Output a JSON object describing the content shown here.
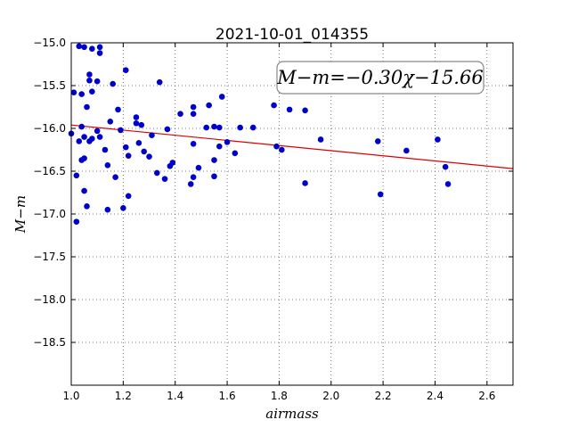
{
  "chart_data": {
    "type": "scatter",
    "title": "2021-10-01_014355",
    "xlabel": "airmass",
    "ylabel": "M−m",
    "xlim": [
      1.0,
      2.7
    ],
    "ylim": [
      -15.0,
      -19.0
    ],
    "y_inverted": true,
    "grid": true,
    "x_ticks": [
      "1.0",
      "1.2",
      "1.4",
      "1.6",
      "1.8",
      "2.0",
      "2.2",
      "2.4",
      "2.6"
    ],
    "y_ticks": [
      "−15.0",
      "−15.5",
      "−16.0",
      "−16.5",
      "−17.0",
      "−17.5",
      "−18.0",
      "−18.5"
    ],
    "annotation": "M−m=−0.30χ−15.66",
    "point_color": "#0000cc",
    "fit_color": "#dd0000",
    "fit_line": {
      "slope": -0.3,
      "intercept": -15.66
    },
    "points": [
      [
        1.0,
        -16.06
      ],
      [
        1.01,
        -15.58
      ],
      [
        1.02,
        -16.55
      ],
      [
        1.02,
        -17.09
      ],
      [
        1.03,
        -15.04
      ],
      [
        1.04,
        -15.6
      ],
      [
        1.05,
        -15.05
      ],
      [
        1.06,
        -15.75
      ],
      [
        1.04,
        -15.98
      ],
      [
        1.05,
        -16.1
      ],
      [
        1.03,
        -16.15
      ],
      [
        1.04,
        -16.37
      ],
      [
        1.05,
        -16.35
      ],
      [
        1.05,
        -16.73
      ],
      [
        1.06,
        -16.91
      ],
      [
        1.07,
        -15.37
      ],
      [
        1.07,
        -15.44
      ],
      [
        1.08,
        -15.07
      ],
      [
        1.08,
        -15.57
      ],
      [
        1.07,
        -16.15
      ],
      [
        1.08,
        -16.12
      ],
      [
        1.1,
        -15.45
      ],
      [
        1.1,
        -16.03
      ],
      [
        1.11,
        -15.05
      ],
      [
        1.11,
        -15.12
      ],
      [
        1.11,
        -16.1
      ],
      [
        1.13,
        -16.25
      ],
      [
        1.14,
        -16.43
      ],
      [
        1.14,
        -16.95
      ],
      [
        1.15,
        -15.92
      ],
      [
        1.16,
        -15.48
      ],
      [
        1.17,
        -16.57
      ],
      [
        1.18,
        -15.78
      ],
      [
        1.19,
        -16.02
      ],
      [
        1.2,
        -16.93
      ],
      [
        1.21,
        -15.32
      ],
      [
        1.21,
        -16.22
      ],
      [
        1.22,
        -16.32
      ],
      [
        1.22,
        -16.79
      ],
      [
        1.25,
        -15.87
      ],
      [
        1.25,
        -15.94
      ],
      [
        1.26,
        -16.17
      ],
      [
        1.27,
        -15.96
      ],
      [
        1.28,
        -16.27
      ],
      [
        1.3,
        -16.33
      ],
      [
        1.31,
        -16.08
      ],
      [
        1.33,
        -16.52
      ],
      [
        1.34,
        -15.46
      ],
      [
        1.36,
        -16.59
      ],
      [
        1.37,
        -16.01
      ],
      [
        1.38,
        -16.44
      ],
      [
        1.39,
        -16.4
      ],
      [
        1.42,
        -15.83
      ],
      [
        1.46,
        -16.65
      ],
      [
        1.47,
        -15.75
      ],
      [
        1.47,
        -15.83
      ],
      [
        1.47,
        -16.57
      ],
      [
        1.47,
        -16.18
      ],
      [
        1.49,
        -16.46
      ],
      [
        1.52,
        -15.99
      ],
      [
        1.53,
        -15.73
      ],
      [
        1.55,
        -15.98
      ],
      [
        1.55,
        -16.37
      ],
      [
        1.55,
        -16.56
      ],
      [
        1.57,
        -15.99
      ],
      [
        1.57,
        -16.21
      ],
      [
        1.58,
        -15.63
      ],
      [
        1.6,
        -16.16
      ],
      [
        1.63,
        -16.29
      ],
      [
        1.65,
        -15.99
      ],
      [
        1.7,
        -15.99
      ],
      [
        1.78,
        -15.73
      ],
      [
        1.79,
        -16.21
      ],
      [
        1.81,
        -16.25
      ],
      [
        1.84,
        -15.78
      ],
      [
        1.9,
        -15.79
      ],
      [
        1.9,
        -16.64
      ],
      [
        1.96,
        -16.13
      ],
      [
        2.18,
        -16.15
      ],
      [
        2.19,
        -16.77
      ],
      [
        2.29,
        -16.26
      ],
      [
        2.41,
        -16.13
      ],
      [
        2.44,
        -16.45
      ],
      [
        2.45,
        -16.65
      ]
    ]
  }
}
